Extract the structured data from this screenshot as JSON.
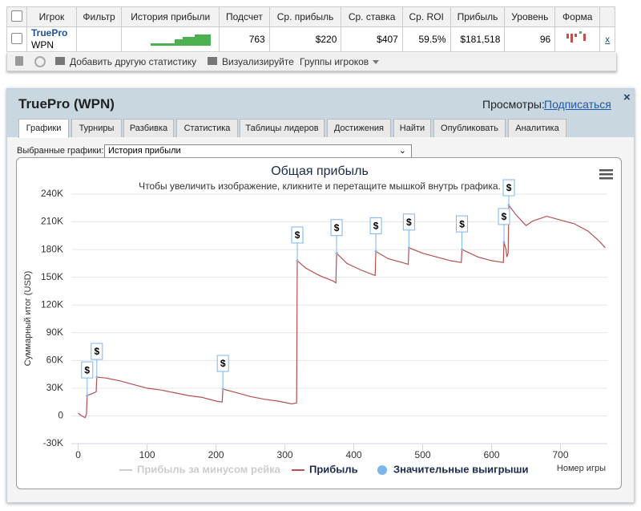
{
  "table": {
    "header": [
      "Игрок",
      "Фильтр",
      "История прибыли",
      "Подсчет",
      "Ср. прибыль",
      "Ср. ставка",
      "Ср. ROI",
      "Прибыль",
      "Уровень",
      "Форма"
    ],
    "row": {
      "player": "TruePro",
      "site": "WPN",
      "count": "763",
      "avg_profit": "$220",
      "avg_stake": "$407",
      "avg_roi": "59.5%",
      "profit": "$181,518",
      "level": "96",
      "remove": "x"
    }
  },
  "toolbar": {
    "add_stat": "Добавить другую статистику",
    "visualize": "Визуализируйте",
    "groups": "Группы игроков"
  },
  "panel": {
    "title": "TruePro (WPN)",
    "views_label": "Просмотры:",
    "subscribe": "Подписаться",
    "tabs": [
      "Графики",
      "Турниры",
      "Разбивка",
      "Статистика",
      "Таблицы лидеров",
      "Достижения",
      "Найти",
      "Опубликовать",
      "Аналитика"
    ],
    "select_label": "Выбранные графики:",
    "select_value": "История прибыли"
  },
  "chart_data": {
    "type": "line",
    "title": "Общая прибыль",
    "subtitle": "Чтобы увеличить изображение, кликните и перетащите мышкой внутрь графика.",
    "x_label": "Номер игры",
    "y_label": "Суммарный итог (USD)",
    "xlim": [
      -10,
      768
    ],
    "ylim": [
      -30000,
      240000
    ],
    "xticks": [
      0,
      100,
      200,
      300,
      400,
      500,
      600,
      700
    ],
    "yticks": [
      {
        "value": -30000,
        "label": "-30K"
      },
      0,
      {
        "value": 30000,
        "label": "30K"
      },
      {
        "value": 60000,
        "label": "60K"
      },
      {
        "value": 90000,
        "label": "90K"
      },
      {
        "value": 120000,
        "label": "120K"
      },
      {
        "value": 150000,
        "label": "150K"
      },
      {
        "value": 180000,
        "label": "180K"
      },
      {
        "value": 210000,
        "label": "210K"
      },
      {
        "value": 240000,
        "label": "240K"
      }
    ],
    "grid": true,
    "legend": "bottom",
    "series": [
      {
        "name": "Прибыль за минусом рейка",
        "color": "#cccccc",
        "visible": false
      },
      {
        "name": "Прибыль",
        "color": "#b5504f",
        "x": [
          0,
          5,
          10,
          12,
          13,
          20,
          26,
          27,
          40,
          60,
          80,
          100,
          120,
          140,
          160,
          180,
          200,
          209,
          210,
          230,
          250,
          270,
          290,
          310,
          317,
          318,
          330,
          350,
          370,
          374,
          375,
          390,
          410,
          431,
          432,
          450,
          470,
          479,
          480,
          500,
          520,
          540,
          556,
          557,
          580,
          600,
          617,
          618,
          621,
          622,
          624,
          625,
          635,
          650,
          660,
          680,
          700,
          720,
          740,
          755,
          765
        ],
        "values": [
          3000,
          0,
          -2000,
          2000,
          22000,
          24000,
          26000,
          42000,
          41000,
          38000,
          34000,
          30000,
          28000,
          25000,
          22000,
          20000,
          16000,
          15000,
          29000,
          25000,
          21000,
          18000,
          16000,
          13000,
          14000,
          168000,
          160000,
          152000,
          146000,
          144000,
          176000,
          165000,
          158000,
          152000,
          178000,
          170000,
          166000,
          164000,
          182000,
          176000,
          172000,
          168000,
          166000,
          180000,
          172000,
          168000,
          166000,
          188000,
          180000,
          172000,
          176000,
          228000,
          218000,
          206000,
          211000,
          216000,
          212000,
          208000,
          200000,
          190000,
          182000
        ]
      },
      {
        "name": "Значительные выигрыши",
        "type": "scatter",
        "color": "#7cb5ec",
        "flag_label": "$",
        "x": [
          13,
          27,
          210,
          318,
          375,
          432,
          480,
          557,
          618,
          625
        ],
        "values": [
          22000,
          42000,
          29000,
          168000,
          176000,
          178000,
          182000,
          180000,
          188000,
          228000
        ]
      }
    ]
  }
}
